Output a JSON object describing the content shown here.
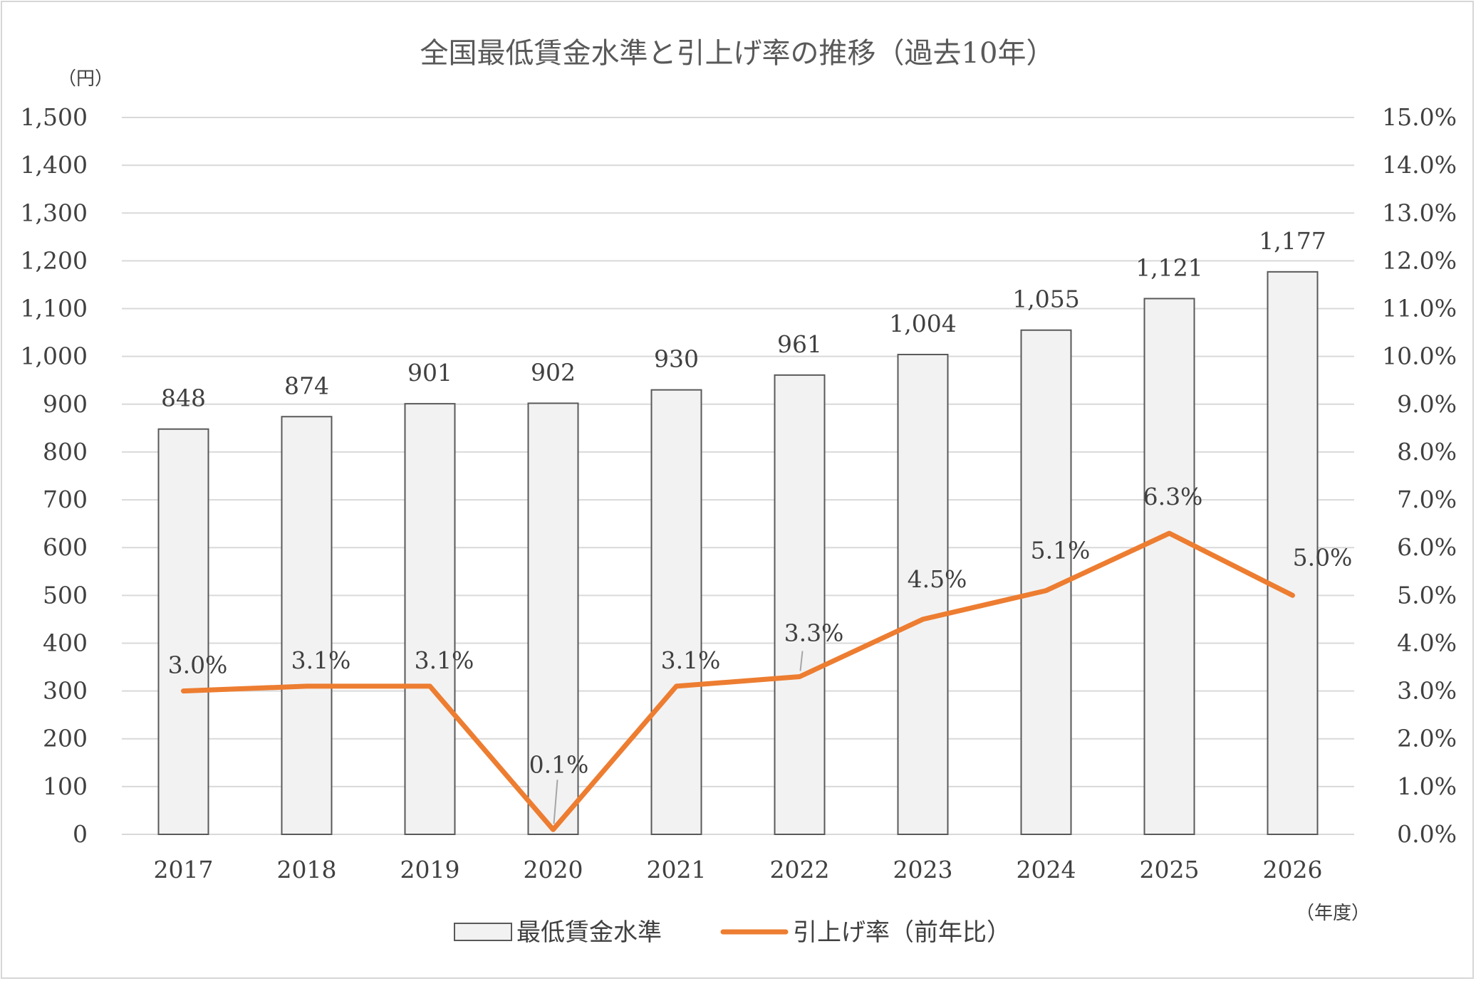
{
  "chart_data": {
    "type": "bar",
    "title": "全国最低賃金水準と引上げ率の推移（過去10年）",
    "categories": [
      "2017",
      "2018",
      "2019",
      "2020",
      "2021",
      "2022",
      "2023",
      "2024",
      "2025",
      "2026"
    ],
    "series": [
      {
        "name": "最低賃金水準",
        "type": "bar",
        "axis": "left",
        "color": "#f2f2f2",
        "border_color": "#595959",
        "values": [
          848,
          874,
          901,
          902,
          930,
          961,
          1004,
          1055,
          1121,
          1177
        ],
        "value_labels": [
          "848",
          "874",
          "901",
          "902",
          "930",
          "961",
          "1,004",
          "1,055",
          "1,121",
          "1,177"
        ]
      },
      {
        "name": "引上げ率（前年比）",
        "type": "line",
        "axis": "right",
        "color": "#ed7d31",
        "values": [
          3.0,
          3.1,
          3.1,
          0.1,
          3.1,
          3.3,
          4.5,
          5.1,
          6.3,
          5.0
        ],
        "value_labels": [
          "3.0%",
          "3.1%",
          "3.1%",
          "0.1%",
          "3.1%",
          "3.3%",
          "4.5%",
          "5.1%",
          "6.3%",
          "5.0%"
        ]
      }
    ],
    "y_left": {
      "unit_label": "（円）",
      "ylim": [
        0,
        1500
      ],
      "ticks": [
        "0",
        "100",
        "200",
        "300",
        "400",
        "500",
        "600",
        "700",
        "800",
        "900",
        "1,000",
        "1,100",
        "1,200",
        "1,300",
        "1,400",
        "1,500"
      ]
    },
    "y_right": {
      "ylim": [
        0,
        15
      ],
      "ticks": [
        "0.0%",
        "1.0%",
        "2.0%",
        "3.0%",
        "4.0%",
        "5.0%",
        "6.0%",
        "7.0%",
        "8.0%",
        "9.0%",
        "10.0%",
        "11.0%",
        "12.0%",
        "13.0%",
        "14.0%",
        "15.0%"
      ]
    },
    "x_unit_label": "（年度）",
    "grid": true,
    "gridline_color": "#d9d9d9",
    "legend_position": "bottom"
  }
}
